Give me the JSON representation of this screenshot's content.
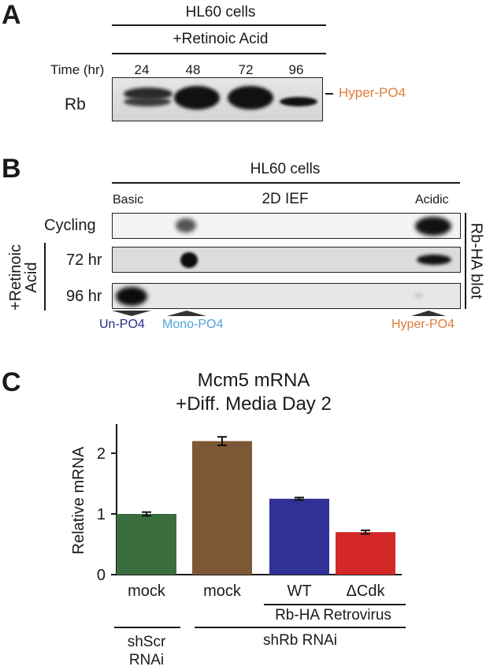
{
  "panel_a": {
    "letter": "A",
    "header1": "HL60 cells",
    "header2": "+Retinoic Acid",
    "time_label": "Time (hr)",
    "times": [
      "24",
      "48",
      "72",
      "96"
    ],
    "row_label": "Rb",
    "band_label": "Hyper-PO4"
  },
  "panel_b": {
    "letter": "B",
    "header1": "HL60 cells",
    "basic": "Basic",
    "center": "2D IEF",
    "acidic": "Acidic",
    "rows": [
      "Cycling",
      "72 hr",
      "96 hr"
    ],
    "side_label_1": "+Retinoic",
    "side_label_2": "Acid",
    "right_label": "Rb-HA blot",
    "markers": [
      "Un-PO4",
      "Mono-PO4",
      "Hyper-PO4"
    ]
  },
  "panel_c": {
    "letter": "C",
    "group_1": "shScr\nRNAi",
    "group_2": "shRb RNAi",
    "retro_label": "Rb-HA Retrovirus"
  },
  "chart_data": {
    "type": "bar",
    "title": "Mcm5 mRNA\n+Diff. Media Day 2",
    "ylabel": "Relative mRNA",
    "xlabel": "",
    "ylim": [
      0,
      2.5
    ],
    "yticks": [
      "0",
      "1",
      "2"
    ],
    "categories": [
      "mock",
      "mock",
      "WT",
      "ΔCdk"
    ],
    "values": [
      1.0,
      2.2,
      1.25,
      0.7
    ],
    "errors": [
      0.03,
      0.07,
      0.02,
      0.03
    ],
    "colors": [
      "#3a6e3e",
      "#7e5836",
      "#303096",
      "#d42828"
    ],
    "grid": false
  }
}
